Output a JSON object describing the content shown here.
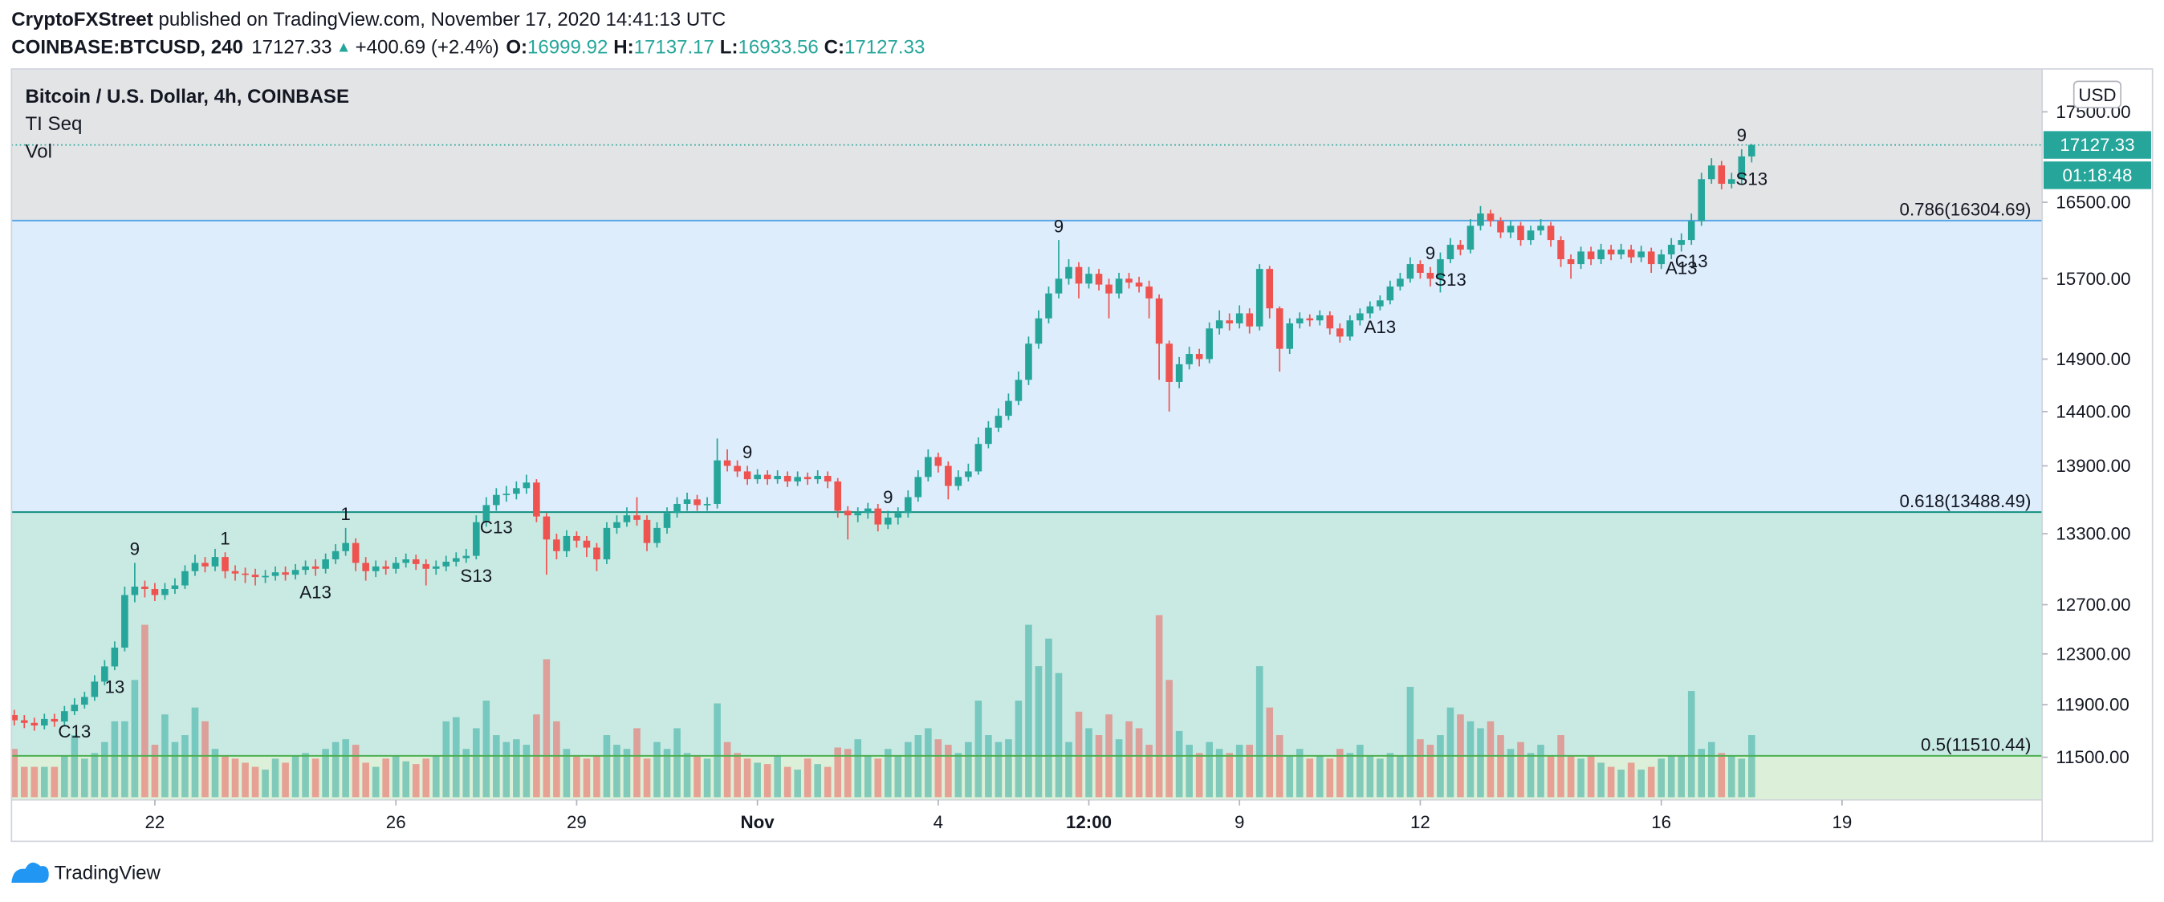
{
  "header": {
    "author": "CryptoFXStreet",
    "published": "published on TradingView.com, November 17, 2020 14:41:13 UTC",
    "symbol": "COINBASE:BTCUSD, 240",
    "price": "17127.33",
    "arrow": "▲",
    "change": "+400.69 (+2.4%)",
    "ohlc": [
      {
        "label": "O:",
        "value": "16999.92"
      },
      {
        "label": "H:",
        "value": "17137.17"
      },
      {
        "label": "L:",
        "value": "16933.56"
      },
      {
        "label": "C:",
        "value": "17127.33"
      }
    ]
  },
  "chart_data": {
    "type": "candlestick",
    "title": "Bitcoin / U.S. Dollar, 4h, COINBASE",
    "indicators": [
      "TI Seq",
      "Vol"
    ],
    "y_unit": "USD",
    "log": true,
    "ylim": [
      11185,
      17995
    ],
    "yticks": [
      {
        "value": 11500,
        "label": "11500.00"
      },
      {
        "value": 11900,
        "label": "11900.00"
      },
      {
        "value": 12300,
        "label": "12300.00"
      },
      {
        "value": 12700,
        "label": "12700.00"
      },
      {
        "value": 13300,
        "label": "13300.00"
      },
      {
        "value": 13900,
        "label": "13900.00"
      },
      {
        "value": 14400,
        "label": "14400.00"
      },
      {
        "value": 14900,
        "label": "14900.00"
      },
      {
        "value": 15700,
        "label": "15700.00"
      },
      {
        "value": 16500,
        "label": "16500.00"
      },
      {
        "value": 17500,
        "label": "17500.00"
      }
    ],
    "up_color": "#26a69a",
    "down_color": "#ef5350",
    "last_price": 17127.33,
    "countdown": "01:18:48",
    "fill_above": "#e3e4e6",
    "fib_levels": [
      {
        "label": "0.786(16304.69)",
        "price": 16304.69,
        "color": "#5aa6e6",
        "fill": "#ddedfb"
      },
      {
        "label": "0.618(13488.49)",
        "price": 13488.49,
        "color": "#129080",
        "fill": "#c9eae3"
      },
      {
        "label": "0.5(11510.44)",
        "price": 11510.44,
        "color": "#4caf50",
        "fill": "#dcefd8"
      }
    ],
    "categories": [
      null,
      null,
      null,
      null,
      null,
      null,
      null,
      null,
      null,
      null,
      null,
      null,
      null,
      null,
      "22",
      null,
      null,
      null,
      null,
      null,
      null,
      null,
      null,
      null,
      null,
      null,
      null,
      null,
      null,
      null,
      null,
      null,
      null,
      null,
      null,
      null,
      null,
      null,
      "26",
      null,
      null,
      null,
      null,
      null,
      null,
      null,
      null,
      null,
      null,
      null,
      null,
      null,
      null,
      null,
      null,
      null,
      "29",
      null,
      null,
      null,
      null,
      null,
      null,
      null,
      null,
      null,
      null,
      null,
      null,
      null,
      null,
      null,
      null,
      null,
      "Nov",
      null,
      null,
      null,
      null,
      null,
      null,
      null,
      null,
      null,
      null,
      null,
      null,
      null,
      null,
      null,
      null,
      null,
      "4",
      null,
      null,
      null,
      null,
      null,
      null,
      null,
      null,
      null,
      null,
      null,
      null,
      null,
      null,
      "12:00",
      null,
      null,
      null,
      null,
      null,
      null,
      null,
      null,
      null,
      null,
      null,
      null,
      null,
      null,
      "9",
      null,
      null,
      null,
      null,
      null,
      null,
      null,
      null,
      null,
      null,
      null,
      null,
      null,
      null,
      null,
      null,
      null,
      "12",
      null,
      null,
      null,
      null,
      null,
      null,
      null,
      null,
      null,
      null,
      null,
      null,
      null,
      null,
      null,
      null,
      null,
      null,
      null,
      null,
      null,
      null,
      null,
      "16",
      null,
      null,
      null,
      null,
      null,
      null,
      null,
      null,
      null,
      null,
      null,
      null,
      null,
      null,
      null,
      null,
      null,
      "19"
    ],
    "open": [
      11820,
      11780,
      11760,
      11740,
      11790,
      11770,
      11850,
      11900,
      11960,
      12080,
      12200,
      12350,
      12780,
      12850,
      12830,
      12780,
      12830,
      12860,
      12980,
      13050,
      13020,
      13100,
      12980,
      12960,
      12950,
      12930,
      12940,
      12970,
      12950,
      12990,
      13020,
      13000,
      13080,
      13150,
      13220,
      13050,
      12980,
      13020,
      13000,
      13050,
      13080,
      13040,
      13000,
      13020,
      13060,
      13090,
      13110,
      13400,
      13550,
      13640,
      13650,
      13700,
      13750,
      13450,
      13250,
      13150,
      13280,
      13240,
      13180,
      13080,
      13350,
      13400,
      13460,
      13420,
      13220,
      13350,
      13480,
      13560,
      13600,
      13550,
      13560,
      13950,
      13900,
      13850,
      13780,
      13820,
      13780,
      13810,
      13760,
      13800,
      13780,
      13810,
      13760,
      13500,
      13460,
      13480,
      13520,
      13380,
      13440,
      13480,
      13620,
      13800,
      13980,
      13900,
      13720,
      13800,
      13850,
      14100,
      14250,
      14360,
      14500,
      14700,
      15050,
      15300,
      15550,
      15700,
      15820,
      15650,
      15750,
      15640,
      15550,
      15700,
      15660,
      15620,
      15500,
      15050,
      14680,
      14850,
      14950,
      14900,
      15200,
      15280,
      15250,
      15350,
      15220,
      15800,
      15400,
      15000,
      15250,
      15300,
      15280,
      15330,
      15200,
      15120,
      15280,
      15350,
      15420,
      15480,
      15620,
      15700,
      15850,
      15760,
      15700,
      15900,
      16050,
      16000,
      16250,
      16380,
      16300,
      16180,
      16250,
      16100,
      16200,
      16250,
      16100,
      15900,
      15850,
      15980,
      15900,
      16000,
      15950,
      16000,
      15920,
      15980,
      15850,
      15950,
      16050,
      16100,
      16300,
      16750,
      16900,
      16700,
      16750,
      16999.92,
      null,
      null,
      null,
      null,
      null,
      null,
      null,
      null,
      null
    ],
    "high": [
      11860,
      11820,
      11800,
      11830,
      11830,
      11890,
      11950,
      12000,
      12130,
      12250,
      12400,
      12850,
      13050,
      12900,
      12880,
      12880,
      12920,
      13030,
      13120,
      13100,
      13170,
      13140,
      13030,
      13010,
      13000,
      12990,
      13020,
      13020,
      13040,
      13070,
      13080,
      13130,
      13210,
      13350,
      13260,
      13100,
      13070,
      13070,
      13100,
      13130,
      13120,
      13080,
      13070,
      13110,
      13140,
      13170,
      13460,
      13620,
      13700,
      13720,
      13760,
      13820,
      13780,
      13480,
      13300,
      13330,
      13320,
      13280,
      13220,
      13400,
      13460,
      13530,
      13620,
      13460,
      13400,
      13530,
      13620,
      13660,
      13640,
      13620,
      14150,
      14050,
      13950,
      13900,
      13870,
      13860,
      13860,
      13850,
      13850,
      13840,
      13860,
      13850,
      13790,
      13540,
      13530,
      13570,
      13560,
      13500,
      13530,
      13680,
      13860,
      14050,
      14020,
      13940,
      13860,
      13920,
      14160,
      14310,
      14430,
      14570,
      14780,
      15120,
      15380,
      15620,
      16100,
      15900,
      15870,
      15820,
      15800,
      15700,
      15760,
      15760,
      15720,
      15680,
      15540,
      15080,
      14920,
      15020,
      15000,
      15260,
      15380,
      15350,
      15430,
      15400,
      15850,
      15830,
      15420,
      15300,
      15360,
      15340,
      15380,
      15370,
      15250,
      15330,
      15400,
      15470,
      15530,
      15680,
      15760,
      15920,
      15890,
      15820,
      15970,
      16120,
      16100,
      16320,
      16460,
      16420,
      16340,
      16300,
      16290,
      16250,
      16320,
      16290,
      16140,
      15950,
      16030,
      16030,
      16060,
      16050,
      16060,
      16050,
      16040,
      16020,
      16000,
      16120,
      16170,
      16380,
      16820,
      16980,
      16950,
      16820,
      17080,
      17137.17,
      null,
      null,
      null,
      null,
      null,
      null,
      null,
      null,
      null
    ],
    "low": [
      11740,
      11720,
      11700,
      11710,
      11730,
      11740,
      11820,
      11870,
      11930,
      12050,
      12170,
      12320,
      12720,
      12760,
      12730,
      12740,
      12790,
      12830,
      12940,
      12970,
      12980,
      12920,
      12900,
      12880,
      12860,
      12880,
      12900,
      12900,
      12910,
      12950,
      12940,
      12960,
      13040,
      13110,
      12980,
      12900,
      12930,
      12950,
      12960,
      13010,
      12990,
      12860,
      12950,
      12980,
      13020,
      13050,
      13080,
      13360,
      13500,
      13580,
      13600,
      13650,
      13400,
      12950,
      13080,
      13100,
      13180,
      13100,
      12980,
      13040,
      13300,
      13360,
      13370,
      13150,
      13180,
      13300,
      13440,
      13500,
      13500,
      13500,
      13520,
      13850,
      13800,
      13730,
      13740,
      13730,
      13740,
      13710,
      13720,
      13730,
      13740,
      13700,
      13440,
      13250,
      13400,
      13430,
      13320,
      13340,
      13380,
      13440,
      13580,
      13760,
      13840,
      13600,
      13680,
      13760,
      13820,
      14060,
      14210,
      14320,
      14460,
      14650,
      15000,
      15250,
      15500,
      15640,
      15500,
      15600,
      15580,
      15300,
      15500,
      15600,
      15560,
      15300,
      14700,
      14400,
      14620,
      14800,
      14830,
      14860,
      15140,
      15180,
      15200,
      15150,
      15180,
      15300,
      14780,
      14950,
      15200,
      15220,
      15230,
      15140,
      15060,
      15080,
      15230,
      15300,
      15380,
      15440,
      15580,
      15660,
      15700,
      15620,
      15560,
      15860,
      15940,
      15960,
      16200,
      16240,
      16120,
      16120,
      16040,
      16050,
      16150,
      16030,
      15820,
      15700,
      15800,
      15840,
      15850,
      15890,
      15900,
      15860,
      15870,
      15760,
      15800,
      15900,
      15980,
      16050,
      16250,
      16700,
      16640,
      16650,
      16700,
      16933.56,
      null,
      null,
      null,
      null,
      null,
      null,
      null,
      null,
      null
    ],
    "close": [
      11780,
      11760,
      11740,
      11790,
      11770,
      11850,
      11900,
      11960,
      12080,
      12200,
      12350,
      12780,
      12850,
      12830,
      12780,
      12830,
      12860,
      12980,
      13050,
      13020,
      13100,
      12980,
      12960,
      12950,
      12930,
      12940,
      12970,
      12950,
      12990,
      13020,
      13000,
      13080,
      13150,
      13220,
      13050,
      12980,
      13020,
      13000,
      13050,
      13080,
      13040,
      13000,
      13020,
      13060,
      13090,
      13110,
      13400,
      13550,
      13640,
      13650,
      13700,
      13750,
      13450,
      13250,
      13150,
      13280,
      13240,
      13180,
      13080,
      13350,
      13400,
      13460,
      13420,
      13220,
      13350,
      13480,
      13560,
      13600,
      13550,
      13560,
      13950,
      13900,
      13850,
      13780,
      13820,
      13780,
      13810,
      13760,
      13800,
      13780,
      13810,
      13760,
      13500,
      13460,
      13480,
      13520,
      13380,
      13440,
      13480,
      13620,
      13800,
      13980,
      13900,
      13720,
      13800,
      13850,
      14100,
      14250,
      14360,
      14500,
      14700,
      15050,
      15300,
      15550,
      15700,
      15820,
      15650,
      15750,
      15640,
      15550,
      15700,
      15660,
      15620,
      15500,
      15050,
      14680,
      14850,
      14950,
      14900,
      15200,
      15280,
      15250,
      15350,
      15220,
      15800,
      15400,
      15000,
      15250,
      15300,
      15280,
      15330,
      15200,
      15120,
      15280,
      15350,
      15420,
      15480,
      15620,
      15700,
      15850,
      15760,
      15700,
      15900,
      16050,
      16000,
      16250,
      16380,
      16300,
      16180,
      16250,
      16100,
      16200,
      16250,
      16100,
      15900,
      15850,
      15980,
      15900,
      16000,
      15950,
      16000,
      15920,
      15980,
      15850,
      15950,
      16050,
      16100,
      16300,
      16750,
      16900,
      16700,
      16750,
      16999.92,
      17127.33,
      null,
      null,
      null,
      null,
      null,
      null,
      null,
      null,
      null
    ],
    "volume": [
      35,
      22,
      22,
      22,
      22,
      30,
      45,
      28,
      32,
      40,
      55,
      55,
      85,
      125,
      38,
      60,
      40,
      45,
      65,
      55,
      35,
      30,
      28,
      25,
      22,
      20,
      28,
      25,
      30,
      32,
      28,
      35,
      40,
      42,
      38,
      25,
      22,
      28,
      30,
      26,
      24,
      28,
      30,
      55,
      58,
      35,
      50,
      70,
      45,
      40,
      42,
      38,
      60,
      100,
      55,
      35,
      30,
      28,
      30,
      45,
      38,
      35,
      50,
      28,
      40,
      35,
      50,
      32,
      30,
      28,
      68,
      40,
      32,
      28,
      25,
      24,
      30,
      22,
      20,
      28,
      24,
      22,
      36,
      35,
      42,
      30,
      28,
      35,
      30,
      40,
      45,
      50,
      42,
      38,
      32,
      40,
      70,
      45,
      40,
      42,
      70,
      125,
      95,
      115,
      90,
      40,
      62,
      50,
      45,
      60,
      42,
      55,
      50,
      38,
      132,
      85,
      48,
      38,
      32,
      40,
      35,
      32,
      38,
      38,
      95,
      65,
      45,
      30,
      35,
      28,
      30,
      28,
      35,
      32,
      38,
      30,
      28,
      32,
      30,
      80,
      42,
      38,
      45,
      65,
      60,
      55,
      50,
      55,
      45,
      35,
      40,
      32,
      38,
      30,
      45,
      30,
      28,
      30,
      25,
      22,
      20,
      25,
      20,
      22,
      28,
      30,
      30,
      77,
      35,
      40,
      32,
      30,
      28,
      45,
      null,
      null,
      null,
      null,
      null,
      null,
      null,
      null,
      null
    ],
    "annotations": [
      null,
      null,
      null,
      null,
      null,
      null,
      {
        "text": "C13",
        "color": "#9c5fd2",
        "position": "below"
      },
      null,
      null,
      null,
      {
        "text": "13",
        "color": "#9c5fd2",
        "position": "below"
      },
      null,
      {
        "text": "9",
        "color": "#3fae4a",
        "position": "above"
      },
      null,
      null,
      null,
      null,
      null,
      null,
      null,
      null,
      {
        "text": "1",
        "color": "#e0525a",
        "position": "above"
      },
      null,
      null,
      null,
      null,
      null,
      null,
      null,
      null,
      {
        "text": "A13",
        "color": "#2196f3",
        "position": "below"
      },
      null,
      null,
      {
        "text": "1",
        "color": "#e0525a",
        "position": "above"
      },
      null,
      null,
      null,
      null,
      null,
      null,
      null,
      null,
      null,
      null,
      null,
      null,
      {
        "text": "S13",
        "color": "#dc9a28",
        "position": "below"
      },
      null,
      {
        "text": "C13",
        "color": "#9c5fd2",
        "position": "below"
      },
      null,
      null,
      null,
      null,
      null,
      null,
      null,
      null,
      null,
      null,
      null,
      null,
      null,
      null,
      null,
      null,
      null,
      null,
      null,
      null,
      null,
      null,
      null,
      null,
      {
        "text": "9",
        "color": "#3fae4a",
        "position": "above"
      },
      null,
      null,
      null,
      null,
      null,
      null,
      null,
      null,
      null,
      null,
      null,
      null,
      null,
      {
        "text": "9",
        "color": "#e0525a",
        "position": "above"
      },
      null,
      null,
      null,
      null,
      null,
      null,
      null,
      null,
      null,
      null,
      null,
      null,
      null,
      null,
      null,
      null,
      {
        "text": "9",
        "color": "#3fae4a",
        "position": "above"
      },
      null,
      null,
      null,
      null,
      null,
      null,
      null,
      null,
      null,
      null,
      null,
      null,
      null,
      null,
      null,
      null,
      null,
      null,
      null,
      null,
      null,
      null,
      null,
      null,
      null,
      null,
      null,
      null,
      null,
      null,
      null,
      {
        "text": "A13",
        "color": "#2196f3",
        "position": "below"
      },
      null,
      null,
      null,
      null,
      {
        "text": "9",
        "color": "#3fae4a",
        "position": "above"
      },
      null,
      {
        "text": "S13",
        "color": "#dc9a28",
        "position": "below"
      },
      null,
      null,
      null,
      null,
      null,
      null,
      null,
      null,
      null,
      null,
      null,
      null,
      null,
      null,
      null,
      null,
      null,
      null,
      null,
      null,
      null,
      null,
      {
        "text": "A13",
        "color": "#2196f3",
        "position": "below"
      },
      {
        "text": "C13",
        "color": "#9c5fd2",
        "position": "below"
      },
      null,
      null,
      null,
      null,
      {
        "text": "9",
        "color": "#3fae4a",
        "position": "above"
      },
      {
        "text": "S13",
        "color": "#dc9a28",
        "position": "below"
      },
      null,
      null,
      null,
      null,
      null,
      null,
      null,
      null,
      null
    ]
  },
  "footer": {
    "brand": "TradingView"
  }
}
